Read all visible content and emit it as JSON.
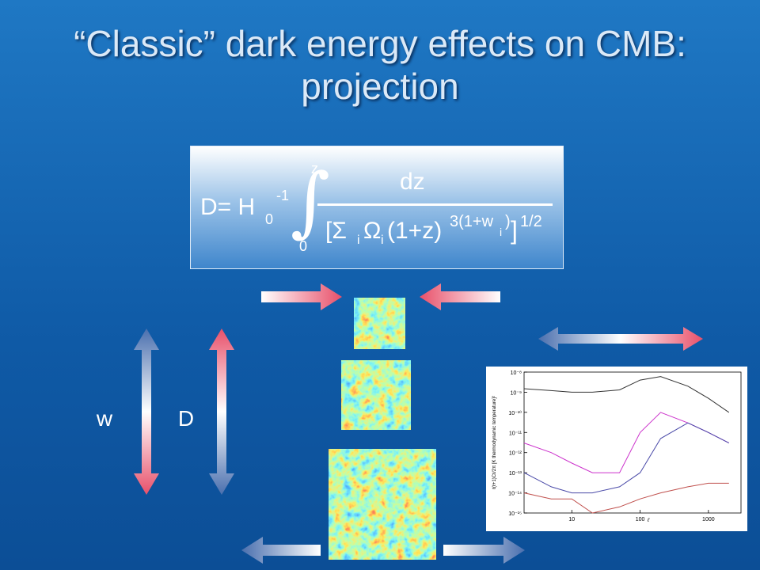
{
  "slide": {
    "title": "“Classic” dark energy effects on CMB: projection",
    "formula": {
      "lhs": "D= H",
      "lhs_sub": "0",
      "lhs_sup": "-1",
      "integral": "∫",
      "upper": "z",
      "lower": "0",
      "numerator": "dz",
      "open": "[Σ",
      "sub1": "i",
      "omega": "Ω",
      "sub2": "i",
      "base": "(1+z)",
      "exp": "3(1+w",
      "exp_sub": "i",
      "exp_close": ")",
      "close": "]",
      "power": "1/2"
    },
    "labels": [
      "w",
      "D"
    ]
  },
  "chart_data": {
    "type": "line",
    "xlabel": "ℓ",
    "ylabel": "ℓ(ℓ+1)Cℓ/2π [K thermodynamic temperature]²",
    "x": [
      2,
      5,
      10,
      20,
      50,
      100,
      200,
      500,
      1000,
      2000
    ],
    "xlim": [
      2,
      3000
    ],
    "xticks": [
      10,
      100,
      1000
    ],
    "xlog": true,
    "ylim": [
      1e-15,
      1e-08
    ],
    "ylog": true,
    "yticks": [
      {
        "value": 1e-08,
        "label": "10⁻⁸"
      },
      {
        "value": 1e-09,
        "label": "10⁻⁹"
      },
      {
        "value": 1e-10,
        "label": "10⁻¹⁰"
      },
      {
        "value": 1e-11,
        "label": "10⁻¹¹"
      },
      {
        "value": 1e-12,
        "label": "10⁻¹²"
      },
      {
        "value": 1e-13,
        "label": "10⁻¹³"
      },
      {
        "value": 1e-14,
        "label": "10⁻¹⁴"
      },
      {
        "value": 1e-15,
        "label": "10⁻¹⁵"
      }
    ],
    "series": [
      {
        "color": "#333333",
        "values": [
          1.5e-09,
          1.2e-09,
          1e-09,
          1e-09,
          1.3e-09,
          4e-09,
          6e-09,
          2e-09,
          5e-10,
          1e-10
        ]
      },
      {
        "color": "#cc33cc",
        "values": [
          3e-12,
          1e-12,
          3e-13,
          1e-13,
          1e-13,
          1e-11,
          1e-10,
          3e-11,
          1e-11,
          3e-12
        ]
      },
      {
        "color": "#4a4aa8",
        "values": [
          1e-13,
          2e-14,
          1e-14,
          1e-14,
          2e-14,
          1e-13,
          5e-12,
          3e-11,
          1e-11,
          3e-12
        ]
      },
      {
        "color": "#c0504d",
        "values": [
          1e-14,
          5e-15,
          5e-15,
          1e-15,
          2e-15,
          5e-15,
          1e-14,
          2e-14,
          3e-14,
          3e-14
        ]
      }
    ]
  }
}
